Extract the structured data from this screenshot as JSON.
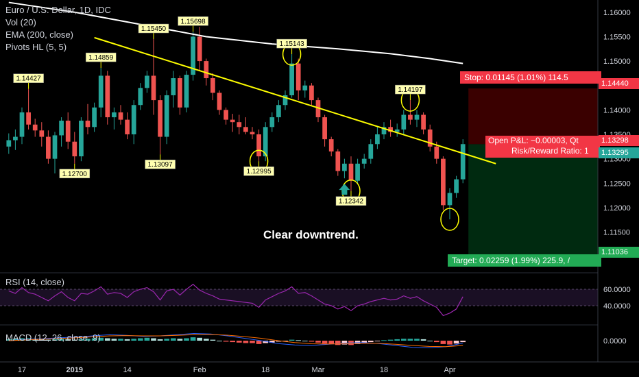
{
  "legend": {
    "title": "Euro / U.S. Dollar, 1D, IDC",
    "vol": "Vol (20)",
    "ema": "EMA (200, close)",
    "pivots": "Pivots HL (5, 5)"
  },
  "annotation": "Clear downtrend.",
  "trade": {
    "stop_label": "Stop: 0.01145 (1.01%) 114.5",
    "target_label": "Target: 0.02259 (1.99%) 225.9, /",
    "pnl_label": "Open P&L: −0.00003, Qt",
    "rr_label": "Risk/Reward Ratio: 1",
    "stop_price": "1.14440",
    "current_price": "1.13295",
    "entry_price": "1.13298",
    "target_price": "1.11036",
    "colors": {
      "stop": "#f23645",
      "target": "#22ab55",
      "stop_zone": "#3a0000",
      "target_zone": "#002a10"
    }
  },
  "rsi": {
    "label": "RSI (14, close)",
    "ticks": [
      "60.0000",
      "40.0000"
    ],
    "levels": [
      60,
      40
    ],
    "color": "#9c27b0"
  },
  "macd": {
    "label": "MACD (12, 26, close, 9)",
    "ticks": [
      "0.0000"
    ]
  },
  "chart_data": {
    "type": "candlestick",
    "price_axis": {
      "ticks": [
        "1.16000",
        "1.15500",
        "1.15000",
        "1.14500",
        "1.14000",
        "1.13500",
        "1.13000",
        "1.12500",
        "1.12000",
        "1.11500"
      ],
      "tick_values": [
        1.16,
        1.155,
        1.15,
        1.145,
        1.14,
        1.135,
        1.13,
        1.125,
        1.12,
        1.115
      ],
      "range": [
        1.1075,
        1.1625
      ]
    },
    "time_axis": {
      "ticks": [
        "17",
        "2019",
        "14",
        "Feb",
        "18",
        "Mar",
        "18",
        "Apr"
      ],
      "tick_bar_index": [
        2,
        10,
        18,
        29,
        39,
        47,
        57,
        67
      ],
      "bar_count": 70
    },
    "colors": {
      "up": "#26a69a",
      "down": "#ef5350",
      "ema": "#ffffff",
      "trendline": "#ffff00",
      "pivot": "#ffff00"
    },
    "candles": [
      [
        1.1325,
        1.1352,
        1.131,
        1.1338
      ],
      [
        1.1338,
        1.136,
        1.1318,
        1.1345
      ],
      [
        1.1345,
        1.1405,
        1.133,
        1.1395
      ],
      [
        1.1395,
        1.1443,
        1.136,
        1.137
      ],
      [
        1.137,
        1.1382,
        1.1345,
        1.1358
      ],
      [
        1.1358,
        1.1375,
        1.1325,
        1.1345
      ],
      [
        1.1345,
        1.1358,
        1.129,
        1.13
      ],
      [
        1.13,
        1.1355,
        1.127,
        1.1348
      ],
      [
        1.1348,
        1.1385,
        1.1325,
        1.1378
      ],
      [
        1.1378,
        1.1395,
        1.132,
        1.1335
      ],
      [
        1.1335,
        1.1355,
        1.129,
        1.1305
      ],
      [
        1.1305,
        1.1385,
        1.1295,
        1.1378
      ],
      [
        1.1378,
        1.1412,
        1.135,
        1.1365
      ],
      [
        1.1365,
        1.1415,
        1.1355,
        1.1405
      ],
      [
        1.1405,
        1.1486,
        1.1385,
        1.147
      ],
      [
        1.147,
        1.148,
        1.137,
        1.1385
      ],
      [
        1.1385,
        1.1405,
        1.136,
        1.1395
      ],
      [
        1.1395,
        1.141,
        1.137,
        1.138
      ],
      [
        1.138,
        1.1395,
        1.134,
        1.135
      ],
      [
        1.135,
        1.142,
        1.133,
        1.141
      ],
      [
        1.141,
        1.1455,
        1.14,
        1.1445
      ],
      [
        1.1445,
        1.148,
        1.1435,
        1.147
      ],
      [
        1.147,
        1.1545,
        1.139,
        1.142
      ],
      [
        1.142,
        1.143,
        1.1309,
        1.1345
      ],
      [
        1.1345,
        1.144,
        1.133,
        1.143
      ],
      [
        1.143,
        1.148,
        1.1405,
        1.1465
      ],
      [
        1.1465,
        1.147,
        1.139,
        1.1405
      ],
      [
        1.1405,
        1.148,
        1.1395,
        1.1472
      ],
      [
        1.1472,
        1.156,
        1.146,
        1.155
      ],
      [
        1.155,
        1.157,
        1.148,
        1.15
      ],
      [
        1.15,
        1.1505,
        1.145,
        1.1465
      ],
      [
        1.1465,
        1.1475,
        1.142,
        1.1435
      ],
      [
        1.1435,
        1.144,
        1.139,
        1.14
      ],
      [
        1.14,
        1.1405,
        1.137,
        1.138
      ],
      [
        1.138,
        1.1392,
        1.1355,
        1.1375
      ],
      [
        1.1375,
        1.139,
        1.135,
        1.1365
      ],
      [
        1.1365,
        1.1385,
        1.135,
        1.1355
      ],
      [
        1.1355,
        1.1365,
        1.134,
        1.135
      ],
      [
        1.135,
        1.136,
        1.1295,
        1.1305
      ],
      [
        1.1305,
        1.1375,
        1.1295,
        1.1365
      ],
      [
        1.1365,
        1.1395,
        1.1355,
        1.1385
      ],
      [
        1.1385,
        1.142,
        1.1375,
        1.141
      ],
      [
        1.141,
        1.144,
        1.14,
        1.143
      ],
      [
        1.143,
        1.1514,
        1.1425,
        1.1495
      ],
      [
        1.1495,
        1.1505,
        1.142,
        1.144
      ],
      [
        1.144,
        1.146,
        1.1425,
        1.145
      ],
      [
        1.145,
        1.1455,
        1.141,
        1.142
      ],
      [
        1.142,
        1.1425,
        1.1375,
        1.1385
      ],
      [
        1.1385,
        1.139,
        1.1325,
        1.134
      ],
      [
        1.134,
        1.1345,
        1.1305,
        1.1315
      ],
      [
        1.1315,
        1.132,
        1.1265,
        1.1275
      ],
      [
        1.1275,
        1.13,
        1.126,
        1.129
      ],
      [
        1.129,
        1.1305,
        1.1234,
        1.1255
      ],
      [
        1.1255,
        1.13,
        1.125,
        1.129
      ],
      [
        1.129,
        1.131,
        1.128,
        1.13
      ],
      [
        1.13,
        1.134,
        1.129,
        1.133
      ],
      [
        1.133,
        1.1365,
        1.132,
        1.135
      ],
      [
        1.135,
        1.1375,
        1.134,
        1.1365
      ],
      [
        1.1365,
        1.138,
        1.1345,
        1.1355
      ],
      [
        1.1355,
        1.1372,
        1.1345,
        1.136
      ],
      [
        1.136,
        1.14,
        1.135,
        1.139
      ],
      [
        1.139,
        1.142,
        1.137,
        1.138
      ],
      [
        1.138,
        1.14,
        1.1365,
        1.139
      ],
      [
        1.139,
        1.1395,
        1.135,
        1.136
      ],
      [
        1.136,
        1.137,
        1.1315,
        1.1325
      ],
      [
        1.1325,
        1.1335,
        1.129,
        1.13
      ],
      [
        1.13,
        1.1305,
        1.1195,
        1.1205
      ],
      [
        1.1205,
        1.124,
        1.1176,
        1.123
      ],
      [
        1.123,
        1.1265,
        1.122,
        1.1258
      ],
      [
        1.1258,
        1.134,
        1.125,
        1.133
      ]
    ],
    "candle_order": "open_high_low_close",
    "ema200": [
      [
        0,
        1.162
      ],
      [
        10,
        1.16
      ],
      [
        20,
        1.1575
      ],
      [
        30,
        1.155
      ],
      [
        40,
        1.1535
      ],
      [
        50,
        1.1525
      ],
      [
        58,
        1.1515
      ],
      [
        64,
        1.1505
      ],
      [
        69,
        1.1495
      ]
    ],
    "trendline": [
      [
        13,
        1.1548
      ],
      [
        74,
        1.129
      ]
    ],
    "pivots": [
      {
        "bar": 3,
        "label": "1.14427",
        "type": "high"
      },
      {
        "bar": 10,
        "label": "1.12700",
        "type": "low"
      },
      {
        "bar": 14,
        "label": "1.14859",
        "type": "high"
      },
      {
        "bar": 22,
        "label": "1.15450",
        "type": "high"
      },
      {
        "bar": 23,
        "label": "1.13097",
        "type": "low"
      },
      {
        "bar": 28,
        "label": "1.15698",
        "type": "high"
      },
      {
        "bar": 38,
        "label": "1.12995",
        "type": "low"
      },
      {
        "bar": 43,
        "label": "1.15143",
        "type": "high"
      },
      {
        "bar": 52,
        "label": "1.12342",
        "type": "low"
      },
      {
        "bar": 61,
        "label": "1.14197",
        "type": "high"
      }
    ],
    "circled_bars": [
      38,
      43,
      52,
      61,
      67
    ],
    "signal_arrow_bar": 51,
    "rsi_values": [
      58,
      55,
      62,
      56,
      54,
      50,
      46,
      52,
      57,
      50,
      46,
      55,
      54,
      58,
      63,
      54,
      56,
      55,
      50,
      57,
      60,
      62,
      57,
      47,
      58,
      60,
      53,
      60,
      66,
      59,
      55,
      52,
      48,
      47,
      46,
      45,
      44,
      43,
      38,
      47,
      51,
      55,
      58,
      63,
      55,
      56,
      52,
      47,
      42,
      40,
      36,
      39,
      34,
      40,
      42,
      45,
      47,
      49,
      47,
      48,
      52,
      49,
      51,
      46,
      42,
      38,
      28,
      31,
      36,
      51
    ],
    "macd_hist": [
      0.0003,
      0.0004,
      0.0005,
      0.0005,
      0.0004,
      0.0003,
      0.0002,
      0.0003,
      0.0004,
      0.0003,
      0.0002,
      0.0003,
      0.0004,
      0.0005,
      0.0006,
      0.0005,
      0.0004,
      0.0004,
      0.0003,
      0.0004,
      0.0005,
      0.0006,
      0.0005,
      0.0003,
      0.0004,
      0.0005,
      0.0004,
      0.0005,
      0.0007,
      0.0006,
      0.0004,
      0.0002,
      0.0,
      -0.0002,
      -0.0003,
      -0.0004,
      -0.0005,
      -0.0005,
      -0.0007,
      -0.0005,
      -0.0004,
      -0.0002,
      -0.0001,
      0.0002,
      0.0001,
      0.0,
      -0.0002,
      -0.0004,
      -0.0006,
      -0.0007,
      -0.0009,
      -0.0008,
      -0.0009,
      -0.0007,
      -0.0005,
      -0.0003,
      -0.0001,
      0.0001,
      0.0002,
      0.0003,
      0.0004,
      0.0004,
      0.0004,
      0.0003,
      0.0,
      -0.0003,
      -0.0007,
      -0.0008,
      -0.0006,
      -0.0003
    ],
    "macd_line": [
      0.0,
      0.0005,
      0.0008,
      0.0012,
      0.0015,
      0.002,
      0.0025,
      0.0022,
      0.0018,
      0.002,
      0.0025,
      0.003,
      0.0028,
      0.002,
      0.001,
      0.0,
      -0.0012,
      -0.0018,
      -0.002,
      -0.0015,
      -0.001,
      -0.0008,
      -0.0012,
      -0.002,
      -0.0028,
      -0.003,
      -0.0025,
      -0.001
    ],
    "macd_signal": [
      0.0,
      0.0003,
      0.0006,
      0.0009,
      0.0012,
      0.0016,
      0.002,
      0.0021,
      0.002,
      0.002,
      0.0022,
      0.0025,
      0.0026,
      0.0023,
      0.0017,
      0.001,
      0.0,
      -0.0008,
      -0.0013,
      -0.0014,
      -0.0013,
      -0.0011,
      -0.0011,
      -0.0015,
      -0.002,
      -0.0024,
      -0.0025,
      -0.002
    ]
  }
}
